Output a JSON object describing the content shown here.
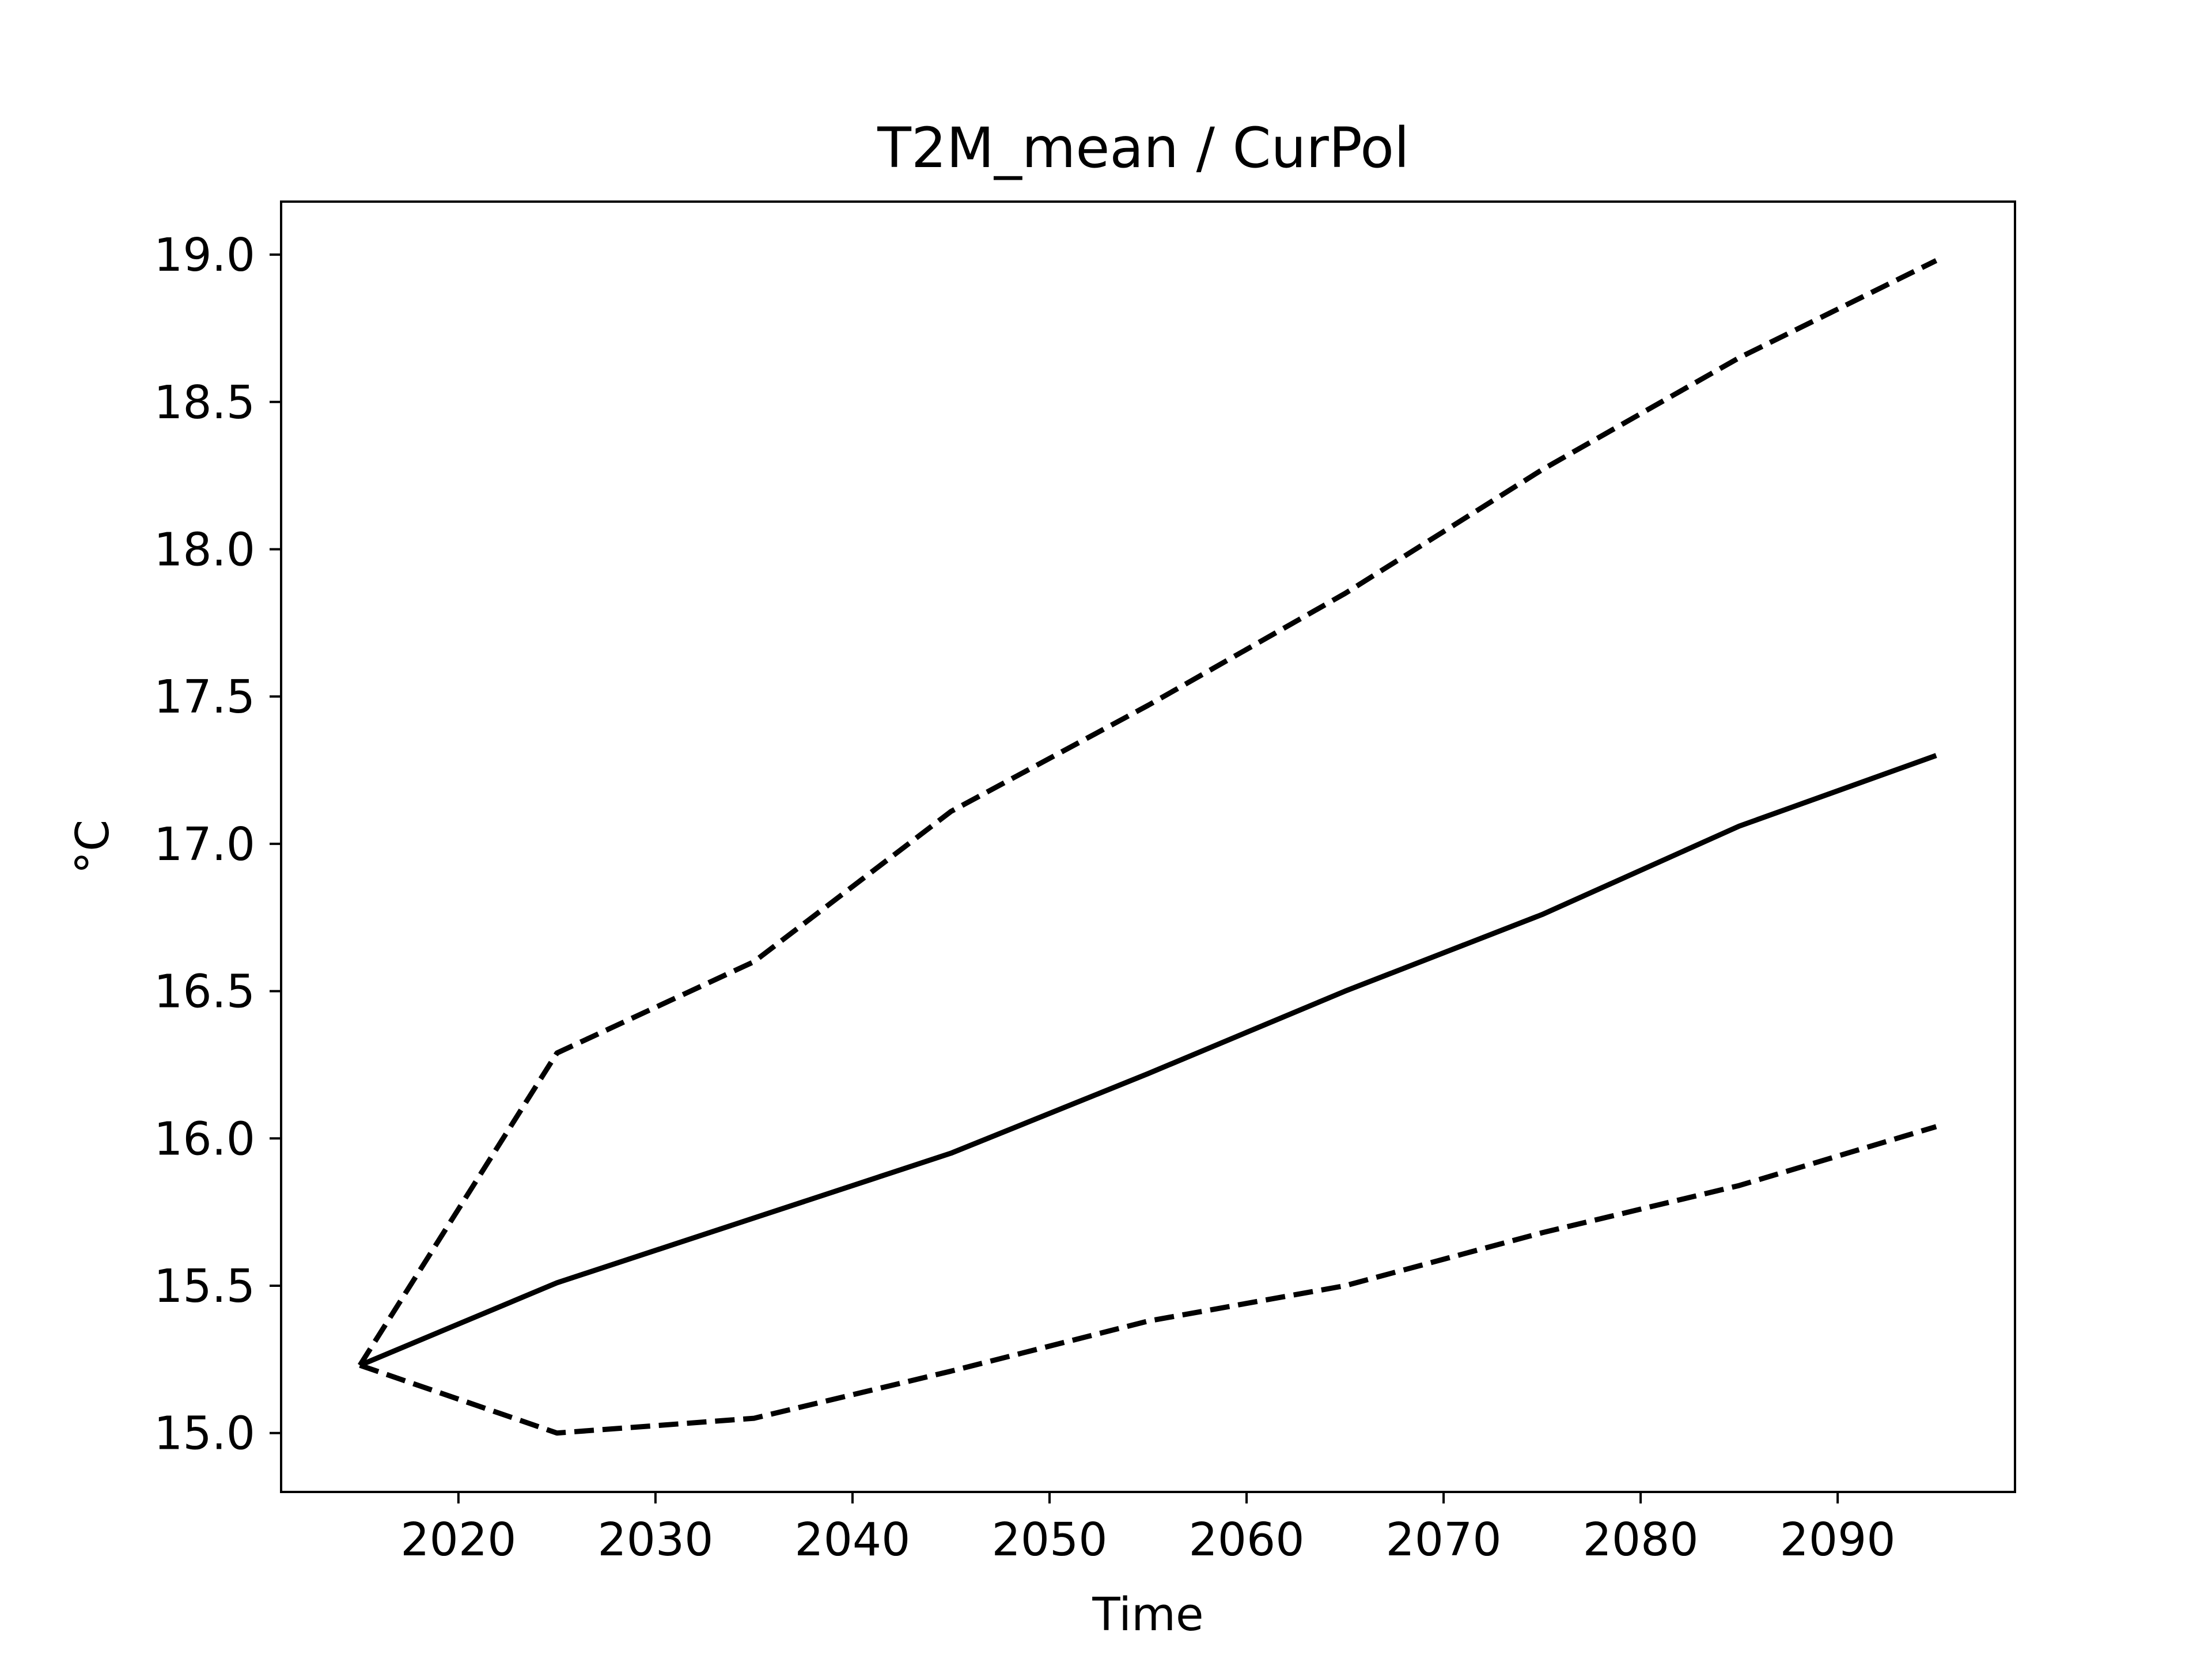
{
  "chart_data": {
    "type": "line",
    "title": "T2M_mean / CurPol",
    "xlabel": "Time",
    "ylabel": "°C",
    "xlim": [
      2011,
      2099
    ],
    "ylim": [
      14.8,
      19.18
    ],
    "xticks": [
      2020,
      2030,
      2040,
      2050,
      2060,
      2070,
      2080,
      2090
    ],
    "yticks": [
      15.0,
      15.5,
      16.0,
      16.5,
      17.0,
      17.5,
      18.0,
      18.5,
      19.0
    ],
    "grid": false,
    "line_color": "#000000",
    "x": [
      2015,
      2025,
      2035,
      2045,
      2055,
      2065,
      2075,
      2085,
      2095
    ],
    "series": [
      {
        "style": "dashed",
        "values": [
          15.23,
          16.29,
          16.6,
          17.11,
          17.47,
          17.85,
          18.27,
          18.65,
          18.98
        ]
      },
      {
        "style": "solid",
        "values": [
          15.23,
          15.51,
          15.73,
          15.95,
          16.22,
          16.5,
          16.76,
          17.06,
          17.3
        ]
      },
      {
        "style": "dashed",
        "values": [
          15.23,
          15.0,
          15.05,
          15.21,
          15.38,
          15.5,
          15.68,
          15.84,
          16.04
        ]
      }
    ]
  }
}
